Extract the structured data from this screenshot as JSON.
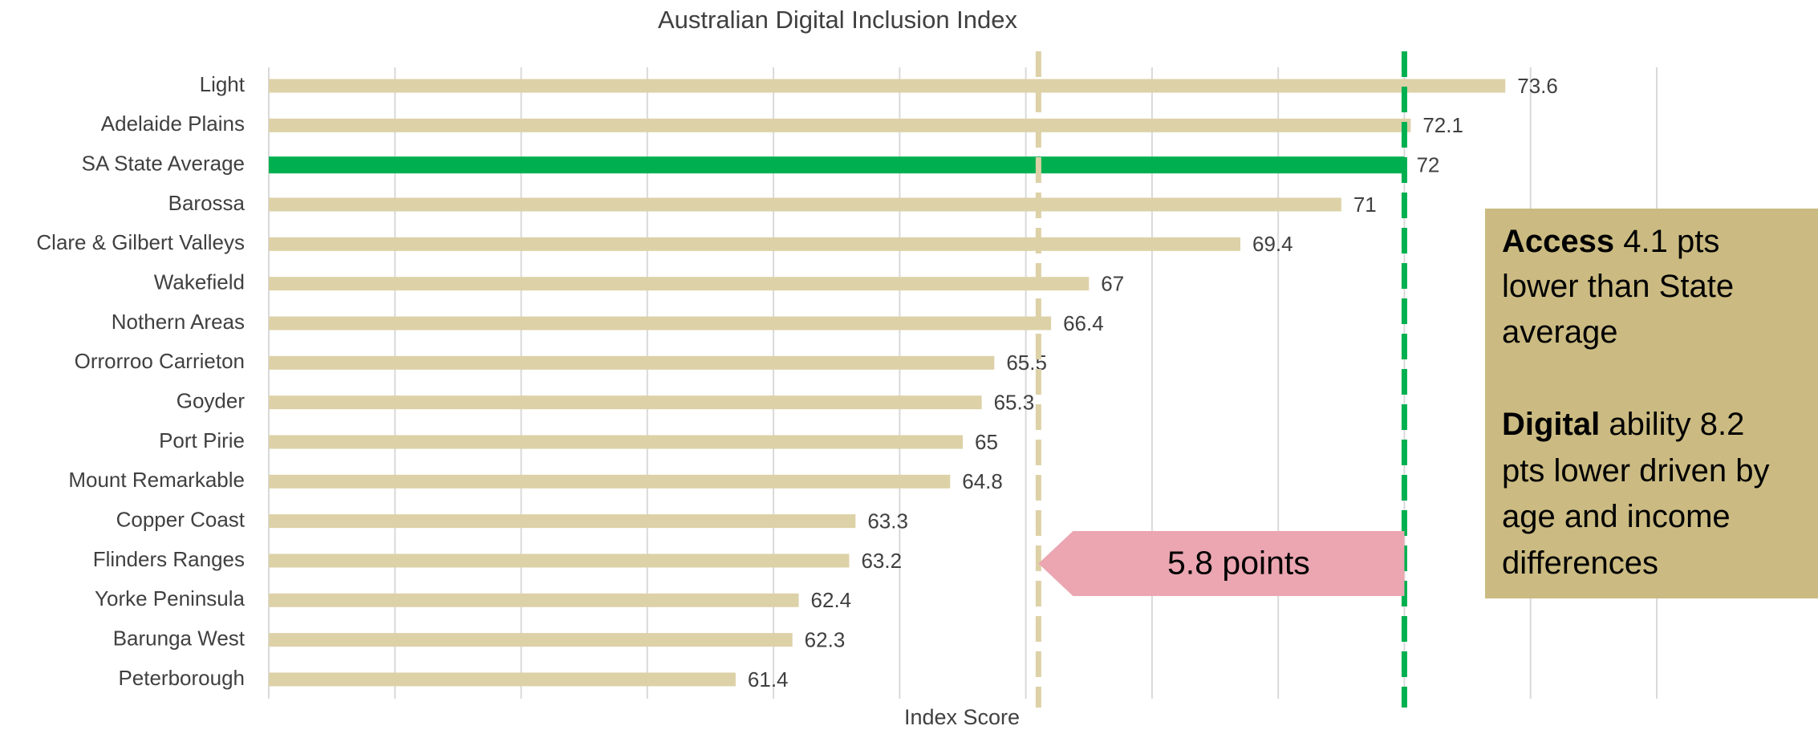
{
  "chart_data": {
    "type": "hbar",
    "title": "Australian Digital Inclusion Index",
    "x_label": "Index Score",
    "categories": [
      "Light",
      "Adelaide Plains",
      "SA State Average",
      "Barossa",
      "Clare & Gilbert Valleys",
      "Wakefield",
      "Nothern Areas",
      "Orrorroo Carrieton",
      "Goyder",
      "Port Pirie",
      "Mount Remarkable",
      "Copper Coast",
      "Flinders Ranges",
      "Yorke Peninsula",
      "Barunga West",
      "Peterborough"
    ],
    "values": [
      73.6,
      72.1,
      72,
      71,
      69.4,
      67,
      66.4,
      65.5,
      65.3,
      65,
      64.8,
      63.3,
      63.2,
      62.4,
      62.3,
      61.4
    ],
    "colors": [
      "#ddd1a7",
      "#ddd1a7",
      "#00b050",
      "#ddd1a7",
      "#ddd1a7",
      "#ddd1a7",
      "#ddd1a7",
      "#ddd1a7",
      "#ddd1a7",
      "#ddd1a7",
      "#ddd1a7",
      "#ddd1a7",
      "#ddd1a7",
      "#ddd1a7",
      "#ddd1a7",
      "#ddd1a7"
    ],
    "xlim": [
      54,
      76
    ],
    "xticks": [
      54,
      56,
      58,
      60,
      62,
      64,
      66,
      68,
      70,
      72,
      74,
      76
    ],
    "grid": true,
    "reference_lines": [
      {
        "value": 72,
        "color": "#00b050"
      },
      {
        "value": 66.2,
        "color": "#ddd1a7"
      }
    ],
    "gap_arrow": {
      "label": "5.8 points",
      "from": 66.2,
      "to": 72,
      "color": "#eba6b1"
    },
    "note_box": {
      "color": "#cbbb82",
      "lines": [
        {
          "bold": "Access",
          "text": " 4.1 pts"
        },
        {
          "text": "lower than State"
        },
        {
          "text": "average"
        },
        {
          "bold": "Digital",
          "text": " ability 8.2"
        },
        {
          "text": "pts lower driven by"
        },
        {
          "text": "age and income"
        },
        {
          "text": "differences"
        }
      ]
    }
  }
}
